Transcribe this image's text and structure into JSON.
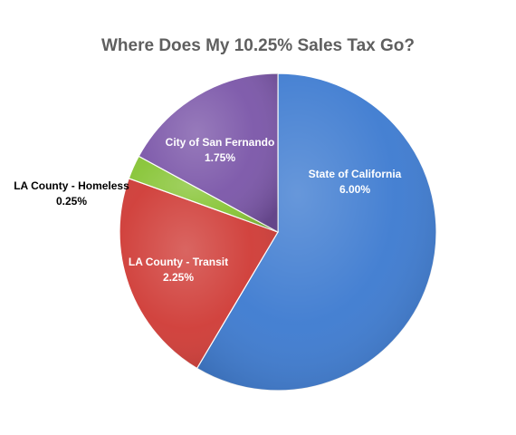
{
  "chart_data": {
    "type": "pie",
    "title": "Where Does My 10.25% Sales Tax Go?",
    "slices": [
      {
        "label": "State of California",
        "value_label": "6.00%",
        "value": 6.0,
        "color": "#3c7ad0"
      },
      {
        "label": "LA County - Transit",
        "value_label": "2.25%",
        "value": 2.25,
        "color": "#cf3a35"
      },
      {
        "label": "LA County - Homeless",
        "value_label": "0.25%",
        "value": 0.25,
        "color": "#86c434"
      },
      {
        "label": "City of San Fernando",
        "value_label": "1.75%",
        "value": 1.75,
        "color": "#7a55a8"
      }
    ],
    "legend": "none"
  }
}
